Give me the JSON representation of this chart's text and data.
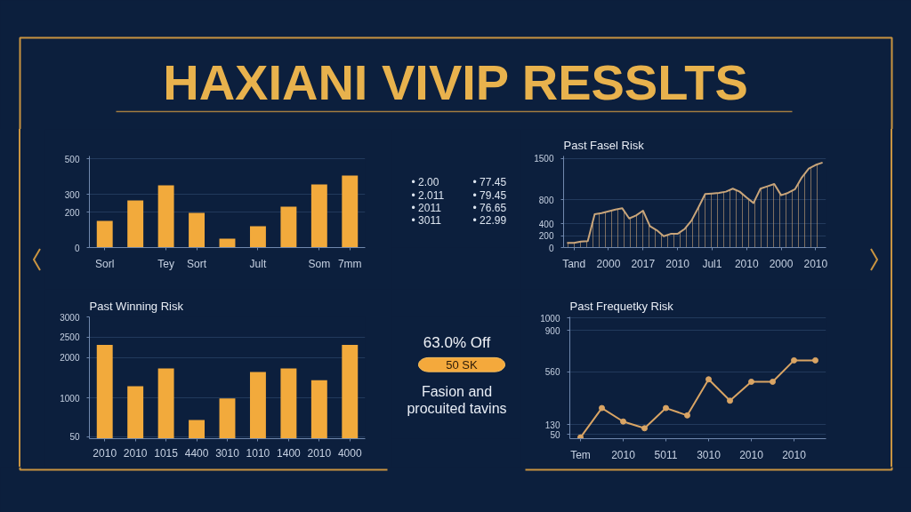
{
  "chart_data": [
    {
      "type": "other",
      "title": "HAXIANI VIVIP RESSLTS"
    },
    {
      "type": "bar",
      "categories": [
        "Sorl",
        null,
        "Tey",
        "Sort",
        null,
        "Jult",
        null,
        "Som",
        "7mm"
      ],
      "values": [
        150,
        265,
        350,
        195,
        50,
        120,
        230,
        355,
        405
      ],
      "color": "#f2aa3c",
      "ylim": [
        0,
        515
      ],
      "yticks": [
        0,
        200,
        300,
        500
      ],
      "grid": "y"
    },
    {
      "type": "other",
      "annotations": [
        "• 2.00",
        "• 77.45",
        "• 2.011",
        "• 79.45",
        "• 2011",
        "• 76.65",
        "• 3011",
        "• 22.99"
      ]
    },
    {
      "type": "area",
      "title": "Past Fasel Risk",
      "categories": [
        null,
        "Tand",
        null,
        null,
        null,
        null,
        "2000",
        null,
        null,
        null,
        null,
        "2017",
        null,
        null,
        null,
        null,
        "2010",
        null,
        null,
        null,
        null,
        "Jul1",
        null,
        null,
        null,
        null,
        "2010",
        null,
        null,
        null,
        null,
        "2000",
        null,
        null,
        null,
        null,
        "2010",
        null
      ],
      "values": [
        80,
        80,
        100,
        110,
        560,
        580,
        610,
        640,
        660,
        490,
        540,
        620,
        360,
        290,
        190,
        230,
        230,
        310,
        450,
        670,
        900,
        910,
        920,
        940,
        990,
        940,
        840,
        750,
        990,
        1030,
        1070,
        880,
        920,
        980,
        1180,
        1330,
        1390,
        1430
      ],
      "color": "#c9a57a",
      "ylim": [
        0,
        1540
      ],
      "yticks": [
        0,
        200,
        400,
        800,
        1500
      ],
      "grid": "y"
    },
    {
      "type": "bar",
      "title": "Past Winning Risk",
      "categories": [
        "2010",
        "2010",
        "1015",
        "4400",
        "3010",
        "1010",
        "1400",
        "2010",
        "4000"
      ],
      "values": [
        2310,
        1290,
        1730,
        460,
        990,
        1640,
        1730,
        1440,
        2310
      ],
      "color": "#f2aa3c",
      "ylim": [
        0,
        3000
      ],
      "yticks": [
        50,
        1000,
        2000,
        2500,
        3000
      ],
      "grid": "y"
    },
    {
      "type": "other",
      "annotations": [
        "63.0% Off",
        "50 SK",
        "Fasion and procuited tavins"
      ]
    },
    {
      "type": "line",
      "title": "Past Frequetky Risk",
      "categories": [
        "Tem",
        null,
        "2010",
        null,
        "5011",
        null,
        "3010",
        null,
        "2010",
        null,
        "2010",
        null
      ],
      "values": [
        25,
        265,
        155,
        100,
        265,
        205,
        500,
        325,
        480,
        480,
        655,
        655
      ],
      "color": "#d9a464",
      "marker": "circle",
      "ylim": [
        15,
        1010
      ],
      "yticks": [
        50,
        130,
        560,
        900,
        1000
      ],
      "grid": "y"
    }
  ]
}
